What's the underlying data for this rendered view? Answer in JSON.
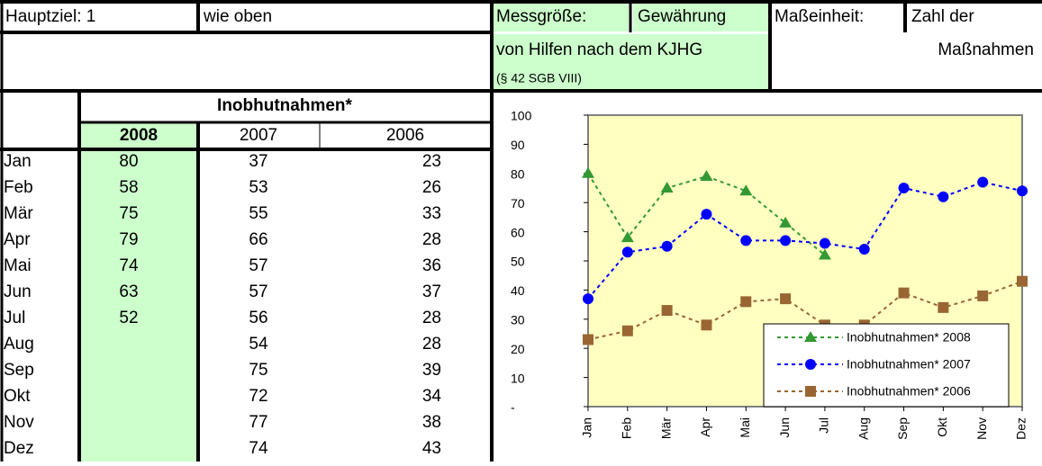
{
  "header": {
    "goal_label": "Hauptziel: 1",
    "goal_text": "wie oben",
    "measure_label": "Messgröße:",
    "measure_text_1": "Gewährung",
    "measure_text_2": "von Hilfen nach dem KJHG",
    "measure_note": "(§ 42 SGB VIII)",
    "unit_label": "Maßeinheit:",
    "unit_text_1": "Zahl der",
    "unit_text_2": "Maßnahmen"
  },
  "table": {
    "title": "Inobhutnahmen*",
    "years": [
      "2008",
      "2007",
      "2006"
    ]
  },
  "chart_data": {
    "type": "line",
    "categories": [
      "Jan",
      "Feb",
      "Mär",
      "Apr",
      "Mai",
      "Jun",
      "Jul",
      "Aug",
      "Sep",
      "Okt",
      "Nov",
      "Dez"
    ],
    "series": [
      {
        "name": "Inobhutnahmen* 2008",
        "color": "#339933",
        "marker": "triangle",
        "values": [
          80,
          58,
          75,
          79,
          74,
          63,
          52,
          null,
          null,
          null,
          null,
          null
        ]
      },
      {
        "name": "Inobhutnahmen* 2007",
        "color": "#0000ff",
        "marker": "circle",
        "values": [
          37,
          53,
          55,
          66,
          57,
          57,
          56,
          54,
          75,
          72,
          77,
          74
        ]
      },
      {
        "name": "Inobhutnahmen* 2006",
        "color": "#996633",
        "marker": "square",
        "values": [
          23,
          26,
          33,
          28,
          36,
          37,
          28,
          28,
          39,
          34,
          38,
          43
        ]
      }
    ],
    "ylim": [
      0,
      100
    ],
    "yticks": [
      {
        "value": 0,
        "label": "-"
      },
      10,
      20,
      30,
      40,
      50,
      60,
      70,
      80,
      90,
      100
    ],
    "legend": "lower right",
    "grid": false,
    "background": "#ffffc0"
  }
}
